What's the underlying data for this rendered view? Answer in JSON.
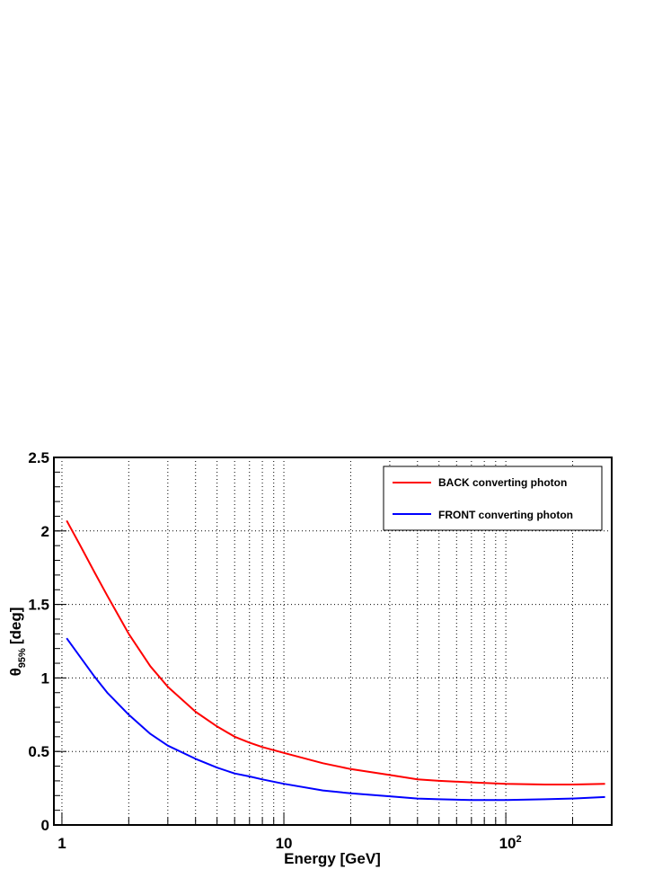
{
  "chart_data": {
    "type": "line",
    "xlabel": "Energy [GeV]",
    "ylabel_symbol": "θ",
    "ylabel_subscript": "95%",
    "ylabel_unit": "[deg]",
    "x_scale": "log",
    "xlim": [
      0.92,
      300
    ],
    "ylim": [
      0,
      2.5
    ],
    "x_ticks": [
      {
        "value": 1,
        "label": "1",
        "exp": ""
      },
      {
        "value": 10,
        "label": "10",
        "exp": ""
      },
      {
        "value": 100,
        "label": "10",
        "exp": "2"
      }
    ],
    "y_ticks": [
      {
        "value": 0,
        "label": "0"
      },
      {
        "value": 0.5,
        "label": "0.5"
      },
      {
        "value": 1,
        "label": "1"
      },
      {
        "value": 1.5,
        "label": "1.5"
      },
      {
        "value": 2,
        "label": "2"
      },
      {
        "value": 2.5,
        "label": "2.5"
      }
    ],
    "grid": true,
    "legend_position": "top-right",
    "series": [
      {
        "name": "BACK converting photon",
        "color": "#ff0000",
        "x": [
          1.05,
          1.2,
          1.4,
          1.6,
          2,
          2.5,
          3,
          4,
          5,
          6,
          7,
          8,
          10,
          15,
          20,
          30,
          40,
          50,
          70,
          100,
          150,
          200,
          280
        ],
        "y": [
          2.07,
          1.91,
          1.72,
          1.56,
          1.3,
          1.08,
          0.94,
          0.77,
          0.67,
          0.6,
          0.56,
          0.53,
          0.49,
          0.42,
          0.38,
          0.34,
          0.31,
          0.3,
          0.29,
          0.28,
          0.275,
          0.275,
          0.28
        ]
      },
      {
        "name": "FRONT converting photon",
        "color": "#0000ff",
        "x": [
          1.05,
          1.2,
          1.4,
          1.6,
          2,
          2.5,
          3,
          4,
          5,
          6,
          7,
          8,
          10,
          15,
          20,
          30,
          40,
          50,
          70,
          100,
          150,
          200,
          280
        ],
        "y": [
          1.27,
          1.15,
          1.01,
          0.9,
          0.75,
          0.62,
          0.54,
          0.45,
          0.39,
          0.35,
          0.33,
          0.31,
          0.28,
          0.235,
          0.215,
          0.195,
          0.18,
          0.175,
          0.17,
          0.17,
          0.175,
          0.18,
          0.19
        ]
      }
    ]
  }
}
